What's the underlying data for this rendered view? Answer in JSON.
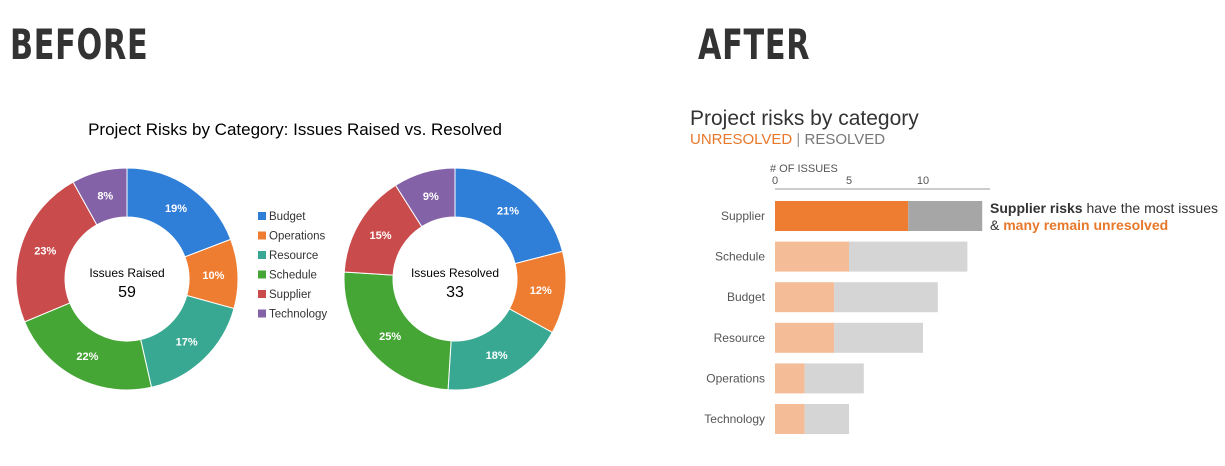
{
  "headings": {
    "before": "BEFORE",
    "after": "AFTER"
  },
  "before": {
    "title": "Project Risks by Category: Issues Raised vs. Resolved",
    "legend": [
      {
        "label": "Budget",
        "color": "#2f7ed8"
      },
      {
        "label": "Operations",
        "color": "#ef7d31"
      },
      {
        "label": "Resource",
        "color": "#38a892"
      },
      {
        "label": "Schedule",
        "color": "#45a535"
      },
      {
        "label": "Supplier",
        "color": "#c94b4b"
      },
      {
        "label": "Technology",
        "color": "#8462a8"
      }
    ]
  },
  "after": {
    "title": "Project risks by category",
    "subtitle": {
      "unresolved": "UNRESOLVED",
      "separator": "|",
      "resolved": "RESOLVED"
    },
    "axis_label": "# OF ISSUES",
    "annotation": {
      "bold": "Supplier risks",
      "text1": " have the most issues & ",
      "highlight": "many remain unresolved"
    },
    "colors": {
      "unresolved_highlight": "#ee7d31",
      "resolved_highlight": "#a6a6a6",
      "unresolved": "#f5bc98",
      "resolved": "#d5d5d5"
    }
  },
  "chart_data": [
    {
      "type": "pie",
      "title": "Issues Raised",
      "center_label": "Issues Raised",
      "center_value": "59",
      "categories": [
        "Budget",
        "Operations",
        "Resource",
        "Schedule",
        "Supplier",
        "Technology"
      ],
      "values": [
        19,
        10,
        17,
        22,
        23,
        8
      ],
      "labels": [
        "19%",
        "10%",
        "17%",
        "22%",
        "23%",
        "8%"
      ]
    },
    {
      "type": "pie",
      "title": "Issues Resolved",
      "center_label": "Issues Resolved",
      "center_value": "33",
      "categories": [
        "Budget",
        "Operations",
        "Resource",
        "Schedule",
        "Supplier",
        "Technology"
      ],
      "values": [
        21,
        12,
        18,
        25,
        15,
        9
      ],
      "labels": [
        "21%",
        "12%",
        "18%",
        "25%",
        "15%",
        "9%"
      ]
    },
    {
      "type": "bar",
      "orientation": "horizontal",
      "stacked": true,
      "title": "Project risks by category",
      "xlabel": "# OF ISSUES",
      "xlim": [
        0,
        15
      ],
      "xticks": [
        "0",
        "5",
        "10",
        "15"
      ],
      "categories": [
        "Supplier",
        "Schedule",
        "Budget",
        "Resource",
        "Operations",
        "Technology"
      ],
      "series": [
        {
          "name": "UNRESOLVED",
          "values": [
            9,
            5,
            4,
            4,
            2,
            2
          ]
        },
        {
          "name": "RESOLVED",
          "values": [
            5,
            8,
            7,
            6,
            4,
            3
          ]
        }
      ]
    }
  ]
}
